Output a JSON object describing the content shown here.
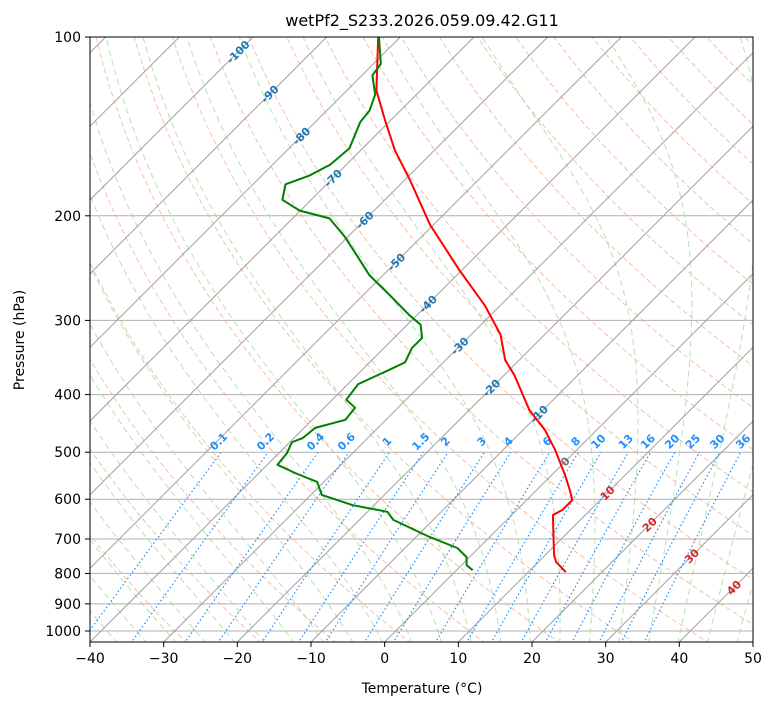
{
  "chart_data": {
    "type": "line",
    "subtype": "skew-t log-p",
    "title": "wetPf2_S233.2026.059.09.42.G11",
    "xlabel": "Temperature (°C)",
    "ylabel": "Pressure (hPa)",
    "xlim": [
      -40,
      50
    ],
    "ylim": [
      1050,
      100
    ],
    "x_ticks": [
      "−40",
      "−30",
      "−20",
      "−10",
      "0",
      "10",
      "20",
      "30",
      "40",
      "50"
    ],
    "x_tick_values": [
      -40,
      -30,
      -20,
      -10,
      0,
      10,
      20,
      30,
      40,
      50
    ],
    "y_ticks": [
      "100",
      "200",
      "300",
      "400",
      "500",
      "600",
      "700",
      "800",
      "900",
      "1000"
    ],
    "y_tick_values": [
      100,
      200,
      300,
      400,
      500,
      600,
      700,
      800,
      900,
      1000
    ],
    "grid": true,
    "series": [
      {
        "name": "temperature",
        "color": "#ff0000",
        "pressure": [
          100,
          123,
          138,
          155,
          174,
          207,
          247,
          283,
          317,
          350,
          371,
          425,
          459,
          496,
          546,
          579,
          602,
          625,
          638,
          703,
          745,
          765,
          796
        ],
        "values": [
          -83.0,
          -76.0,
          -70.8,
          -65.4,
          -59.3,
          -50.5,
          -40.3,
          -32.1,
          -26.0,
          -21.9,
          -18.6,
          -11.8,
          -7.0,
          -2.9,
          1.8,
          4.5,
          6.2,
          6.2,
          5.6,
          9.1,
          11.2,
          12.4,
          15.1
        ]
      },
      {
        "name": "dewpoint",
        "color": "#008000",
        "pressure": [
          100,
          111,
          116,
          125,
          133,
          139,
          154,
          164,
          171,
          177,
          188,
          196,
          202,
          217,
          233,
          252,
          272,
          294,
          305,
          321,
          334,
          353,
          366,
          384,
          408,
          421,
          441,
          455,
          473,
          481,
          502,
          525,
          542,
          561,
          590,
          614,
          630,
          650,
          695,
          725,
          751,
          775,
          790
        ],
        "values": [
          -82.9,
          -79.0,
          -78.6,
          -75.6,
          -74.2,
          -73.9,
          -71.8,
          -72.2,
          -73.5,
          -75.6,
          -73.9,
          -70.1,
          -65.0,
          -60.4,
          -56.3,
          -51.8,
          -46.4,
          -41.0,
          -38.2,
          -36.2,
          -36.2,
          -35.2,
          -36.6,
          -38.6,
          -38.1,
          -35.8,
          -35.5,
          -38.5,
          -38.8,
          -39.7,
          -38.9,
          -38.6,
          -35.1,
          -30.9,
          -28.5,
          -22.9,
          -17.3,
          -15.4,
          -8.1,
          -2.9,
          -0.4,
          0.7,
          2.2
        ]
      }
    ],
    "isotherm_labels": [
      "-100",
      "-90",
      "-80",
      "-70",
      "-60",
      "-50",
      "-40",
      "-30",
      "-20",
      "-10",
      "0",
      "10",
      "20",
      "30",
      "40"
    ],
    "isotherm_label_values": [
      -100,
      -90,
      -80,
      -70,
      -60,
      -50,
      -40,
      -30,
      -20,
      -10,
      0,
      10,
      20,
      30,
      40
    ],
    "mixing_ratio_labels": [
      "0.1",
      "0.2",
      "0.4",
      "0.6",
      "1",
      "1.5",
      "2",
      "3",
      "4",
      "6",
      "8",
      "10",
      "13",
      "16",
      "20",
      "25",
      "30",
      "36"
    ],
    "mixing_ratio_values": [
      0.1,
      0.2,
      0.4,
      0.6,
      1,
      1.5,
      2,
      3,
      4,
      6,
      8,
      10,
      13,
      16,
      20,
      25,
      30,
      36
    ],
    "colors": {
      "isotherm": "#a0a0a0",
      "dry_adiabat": "#f4a582",
      "moist_adiabat": "#a6d8a0",
      "mixing_ratio": "#1e90ff",
      "label_negative": "#1f77b4",
      "label_zero": "#707070",
      "label_positive": "#d62728"
    }
  }
}
